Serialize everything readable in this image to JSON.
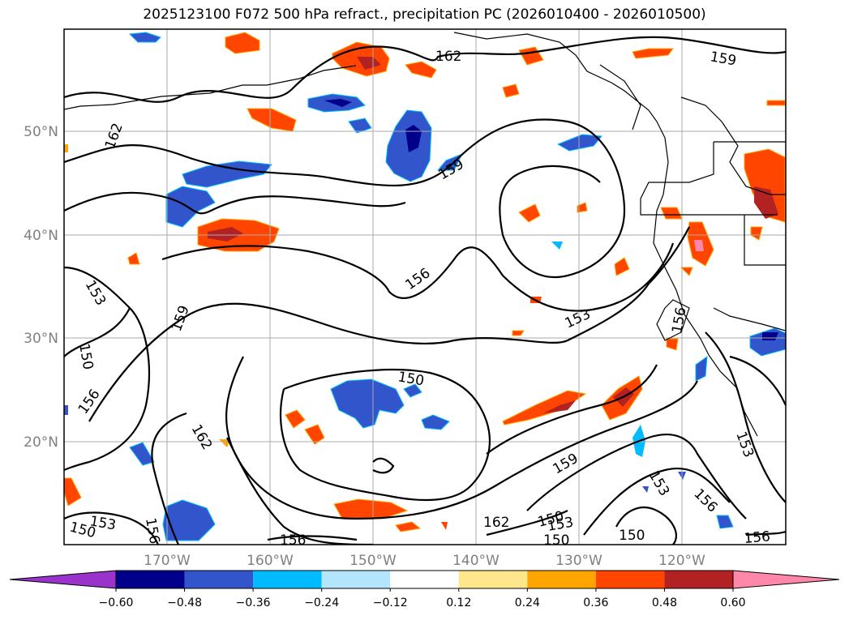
{
  "title": "2025123100 F072 500 hPa refract., precipitation PC (2026010400 - 2026010500)",
  "map": {
    "lat_labels": [
      "50°N",
      "40°N",
      "30°N",
      "20°N"
    ],
    "lon_labels": [
      "170°W",
      "160°W",
      "150°W",
      "140°W",
      "130°W",
      "120°W"
    ],
    "contour_labels": [
      "162",
      "159",
      "162",
      "159",
      "153",
      "159",
      "156",
      "153",
      "150",
      "156",
      "156",
      "150",
      "162",
      "159",
      "153",
      "162",
      "153",
      "156",
      "150",
      "153",
      "150",
      "156",
      "150",
      "153",
      "156",
      "150",
      "156"
    ],
    "colors": {
      "coast": "#000000",
      "grid": "#999999",
      "label_gray": "#808080"
    }
  },
  "colorbar": {
    "ticks": [
      "−0.60",
      "−0.48",
      "−0.36",
      "−0.24",
      "−0.12",
      "0.12",
      "0.24",
      "0.36",
      "0.48",
      "0.60"
    ],
    "colors": [
      "#9933cc",
      "#00008b",
      "#3355cc",
      "#00bbff",
      "#b3e5fc",
      "#ffffff",
      "#ffe68a",
      "#ffa500",
      "#ff4500",
      "#b22222",
      "#ff88aa"
    ]
  }
}
